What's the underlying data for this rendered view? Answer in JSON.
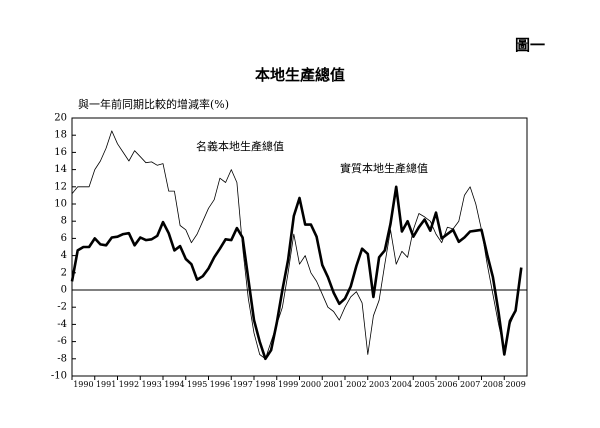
{
  "figure_label": "圖一",
  "chart_data": {
    "type": "line",
    "title": "本地生產總值",
    "ylabel": "與一年前同期比較的增減率(%)",
    "x": [
      1990,
      1990.25,
      1990.5,
      1990.75,
      1991,
      1991.25,
      1991.5,
      1991.75,
      1992,
      1992.25,
      1992.5,
      1992.75,
      1993,
      1993.25,
      1993.5,
      1993.75,
      1994,
      1994.25,
      1994.5,
      1994.75,
      1995,
      1995.25,
      1995.5,
      1995.75,
      1996,
      1996.25,
      1996.5,
      1996.75,
      1997,
      1997.25,
      1997.5,
      1997.75,
      1998,
      1998.25,
      1998.5,
      1998.75,
      1999,
      1999.25,
      1999.5,
      1999.75,
      2000,
      2000.25,
      2000.5,
      2000.75,
      2001,
      2001.25,
      2001.5,
      2001.75,
      2002,
      2002.25,
      2002.5,
      2002.75,
      2003,
      2003.25,
      2003.5,
      2003.75,
      2004,
      2004.25,
      2004.5,
      2004.75,
      2005,
      2005.25,
      2005.5,
      2005.75,
      2006,
      2006.25,
      2006.5,
      2006.75,
      2007,
      2007.25,
      2007.5,
      2007.75,
      2008,
      2008.25,
      2008.5,
      2008.75,
      2009,
      2009.25,
      2009.5,
      2009.75
    ],
    "series": [
      {
        "name": "名義本地生產總值",
        "color": "#000000",
        "line_width": 0.8,
        "values": [
          11.2,
          12.0,
          12.0,
          12.0,
          14.0,
          15.0,
          16.5,
          18.5,
          17.0,
          16.0,
          15.0,
          16.2,
          15.5,
          14.8,
          14.9,
          14.5,
          14.7,
          11.5,
          11.5,
          7.5,
          7.0,
          5.5,
          6.5,
          8.0,
          9.5,
          10.5,
          13.0,
          12.5,
          14.0,
          12.5,
          5.0,
          -1.0,
          -5.0,
          -7.5,
          -8.0,
          -6.0,
          -4.0,
          -2.0,
          2.0,
          6.5,
          3.0,
          4.0,
          2.0,
          1.0,
          -0.5,
          -2.0,
          -2.5,
          -3.5,
          -2.0,
          -0.8,
          -0.2,
          -1.5,
          -7.5,
          -3.0,
          -1.2,
          3.0,
          7.0,
          3.0,
          4.5,
          3.8,
          7.0,
          8.9,
          8.5,
          8.0,
          6.5,
          5.5,
          7.3,
          7.1,
          8.0,
          11.0,
          12.0,
          10.0,
          7.0,
          3.0,
          -0.5,
          -4.0,
          -7.0,
          -4.0,
          -2.5,
          2.5
        ]
      },
      {
        "name": "實質本地生產總值",
        "color": "#000000",
        "line_width": 2.6,
        "values": [
          1.0,
          4.6,
          5.0,
          5.0,
          6.0,
          5.3,
          5.2,
          6.1,
          6.2,
          6.5,
          6.6,
          5.2,
          6.1,
          5.8,
          5.9,
          6.3,
          7.9,
          6.6,
          4.6,
          5.1,
          3.6,
          3.0,
          1.2,
          1.6,
          2.5,
          3.8,
          4.8,
          5.9,
          5.8,
          7.2,
          6.1,
          1.3,
          -3.5,
          -6.0,
          -8.0,
          -7.0,
          -3.8,
          0.0,
          3.5,
          8.6,
          10.7,
          7.6,
          7.6,
          6.2,
          2.9,
          1.5,
          -0.3,
          -1.6,
          -1.0,
          0.4,
          2.8,
          4.8,
          4.2,
          -0.8,
          3.8,
          4.6,
          7.7,
          12.0,
          6.8,
          8.0,
          6.2,
          7.3,
          8.2,
          6.9,
          9.0,
          6.0,
          6.5,
          7.0,
          5.6,
          6.1,
          6.8,
          6.9,
          7.0,
          4.1,
          1.5,
          -2.6,
          -7.5,
          -3.6,
          -2.4,
          2.6
        ]
      }
    ],
    "xlim": [
      1990,
      2010
    ],
    "xticks": [
      1990,
      1991,
      1992,
      1993,
      1994,
      1995,
      1996,
      1997,
      1998,
      1999,
      2000,
      2001,
      2002,
      2003,
      2004,
      2005,
      2006,
      2007,
      2008,
      2009
    ],
    "ylim": [
      -10,
      20
    ],
    "yticks": [
      -10,
      -8,
      -6,
      -4,
      -2,
      0,
      2,
      4,
      6,
      8,
      10,
      12,
      14,
      16,
      18,
      20
    ],
    "reference_line": 0
  }
}
